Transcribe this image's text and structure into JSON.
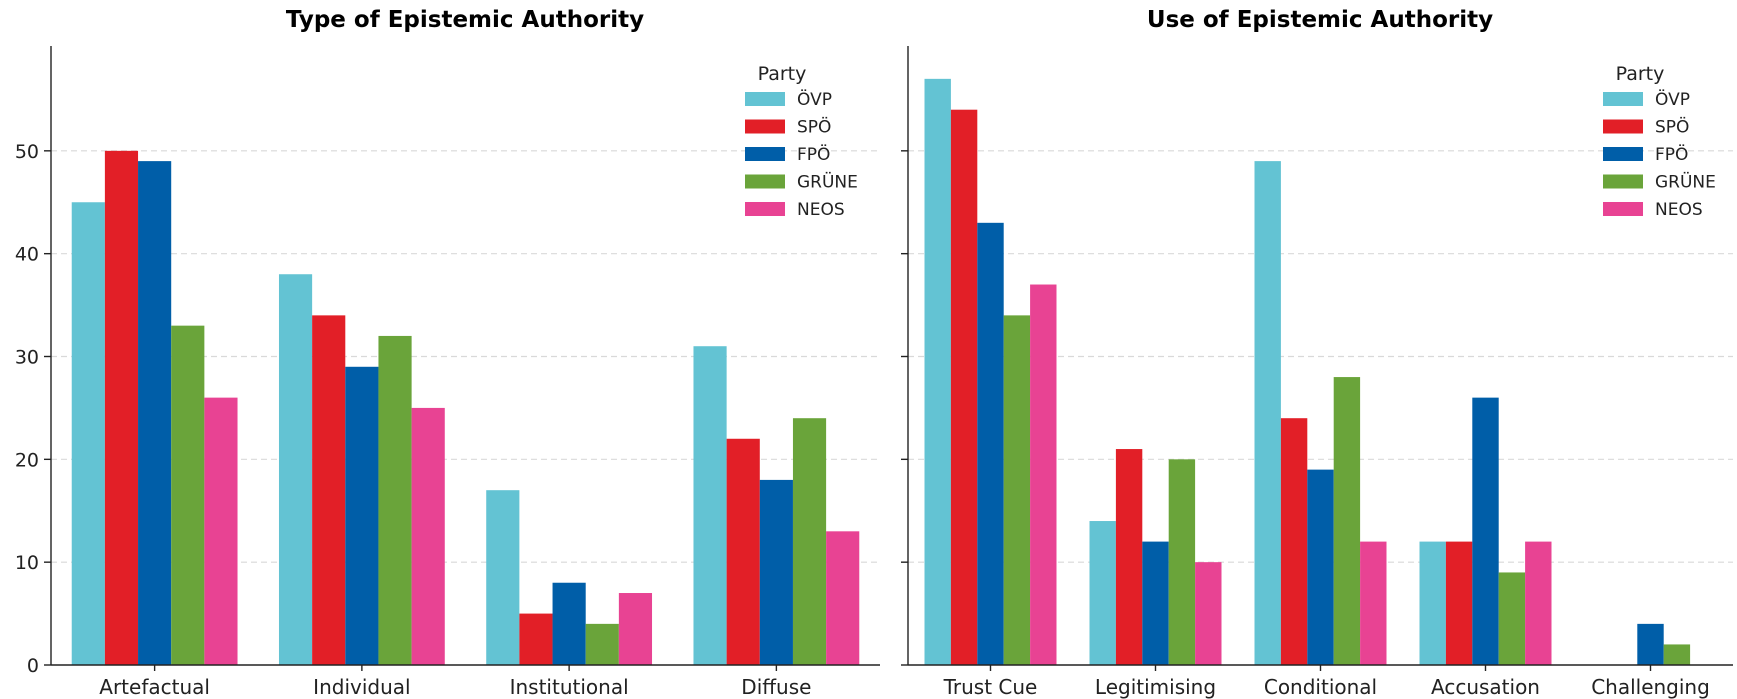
{
  "chart_data": [
    {
      "type": "bar",
      "title": "Type of Epistemic Authority",
      "xlabel": "",
      "ylabel": "",
      "categories": [
        "Artefactual",
        "Individual",
        "Institutional",
        "Diffuse"
      ],
      "ylim": [
        0,
        60
      ],
      "yticks": [
        0,
        10,
        20,
        30,
        40,
        50
      ],
      "grid": true,
      "show_y_tick_labels": true,
      "legend": {
        "title": "Party",
        "placement": "top-right"
      },
      "series": [
        {
          "name": "ÖVP",
          "color": "#63C3D3",
          "values": [
            45,
            38,
            17,
            31
          ]
        },
        {
          "name": "SPÖ",
          "color": "#E21F27",
          "values": [
            50,
            34,
            5,
            22
          ]
        },
        {
          "name": "FPÖ",
          "color": "#005EA8",
          "values": [
            49,
            29,
            8,
            18
          ]
        },
        {
          "name": "GRÜNE",
          "color": "#6AA43A",
          "values": [
            33,
            32,
            4,
            24
          ]
        },
        {
          "name": "NEOS",
          "color": "#E84393",
          "values": [
            26,
            25,
            7,
            13
          ]
        }
      ]
    },
    {
      "type": "bar",
      "title": "Use of Epistemic Authority",
      "xlabel": "",
      "ylabel": "",
      "categories": [
        "Trust Cue",
        "Legitimising",
        "Conditional",
        "Accusation",
        "Challenging"
      ],
      "ylim": [
        0,
        60
      ],
      "yticks": [
        0,
        10,
        20,
        30,
        40,
        50
      ],
      "grid": true,
      "show_y_tick_labels": false,
      "legend": {
        "title": "Party",
        "placement": "top-right"
      },
      "series": [
        {
          "name": "ÖVP",
          "color": "#63C3D3",
          "values": [
            57,
            14,
            49,
            12,
            0
          ]
        },
        {
          "name": "SPÖ",
          "color": "#E21F27",
          "values": [
            54,
            21,
            24,
            12,
            0
          ]
        },
        {
          "name": "FPÖ",
          "color": "#005EA8",
          "values": [
            43,
            12,
            19,
            26,
            4
          ]
        },
        {
          "name": "GRÜNE",
          "color": "#6AA43A",
          "values": [
            34,
            20,
            28,
            9,
            2
          ]
        },
        {
          "name": "NEOS",
          "color": "#E84393",
          "values": [
            37,
            10,
            12,
            12,
            0
          ]
        }
      ]
    }
  ]
}
